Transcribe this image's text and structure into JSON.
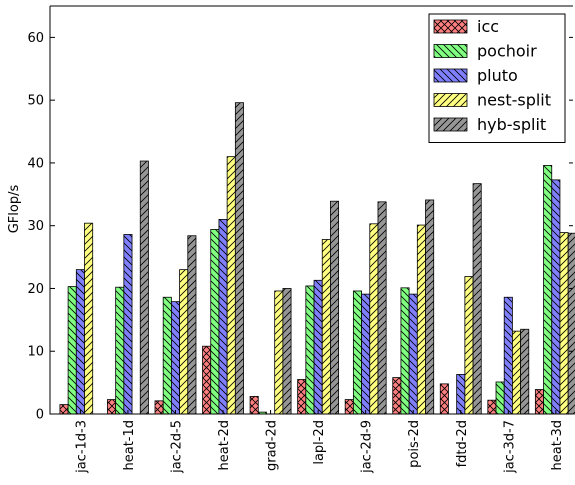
{
  "chart_data": {
    "type": "bar",
    "title": "",
    "xlabel": "",
    "ylabel": "GFlop/s",
    "ylim": [
      0,
      65
    ],
    "yticks": [
      0,
      10,
      20,
      30,
      40,
      50,
      60
    ],
    "grid": false,
    "legend_position": "top-right",
    "categories": [
      "jac-1d-3",
      "heat-1d",
      "jac-2d-5",
      "heat-2d",
      "grad-2d",
      "lapl-2d",
      "jac-2d-9",
      "pois-2d",
      "fdtd-2d",
      "jac-3d-7",
      "heat-3d"
    ],
    "series": [
      {
        "name": "icc",
        "color": "#ff8080",
        "hatch": "cross",
        "values": [
          1.5,
          2.3,
          2.1,
          10.8,
          2.8,
          5.5,
          2.3,
          5.8,
          4.8,
          2.2,
          3.9
        ]
      },
      {
        "name": "pochoir",
        "color": "#80ff80",
        "hatch": "backslash",
        "values": [
          20.3,
          20.2,
          18.6,
          29.4,
          0.3,
          20.4,
          19.6,
          20.1,
          0,
          5.1,
          39.6
        ]
      },
      {
        "name": "pluto",
        "color": "#8080ff",
        "hatch": "backslash",
        "values": [
          23.0,
          28.6,
          17.9,
          31.0,
          0,
          21.3,
          19.1,
          19.1,
          6.3,
          18.6,
          37.3
        ]
      },
      {
        "name": "nest-split",
        "color": "#ffff80",
        "hatch": "slash",
        "values": [
          30.4,
          0,
          23.0,
          41.0,
          19.6,
          27.8,
          30.3,
          30.1,
          21.9,
          13.2,
          28.9
        ]
      },
      {
        "name": "hyb-split",
        "color": "#969696",
        "hatch": "slash",
        "values": [
          0,
          40.3,
          28.4,
          49.6,
          20.0,
          33.9,
          33.8,
          34.1,
          36.7,
          13.5,
          28.8
        ]
      }
    ]
  }
}
